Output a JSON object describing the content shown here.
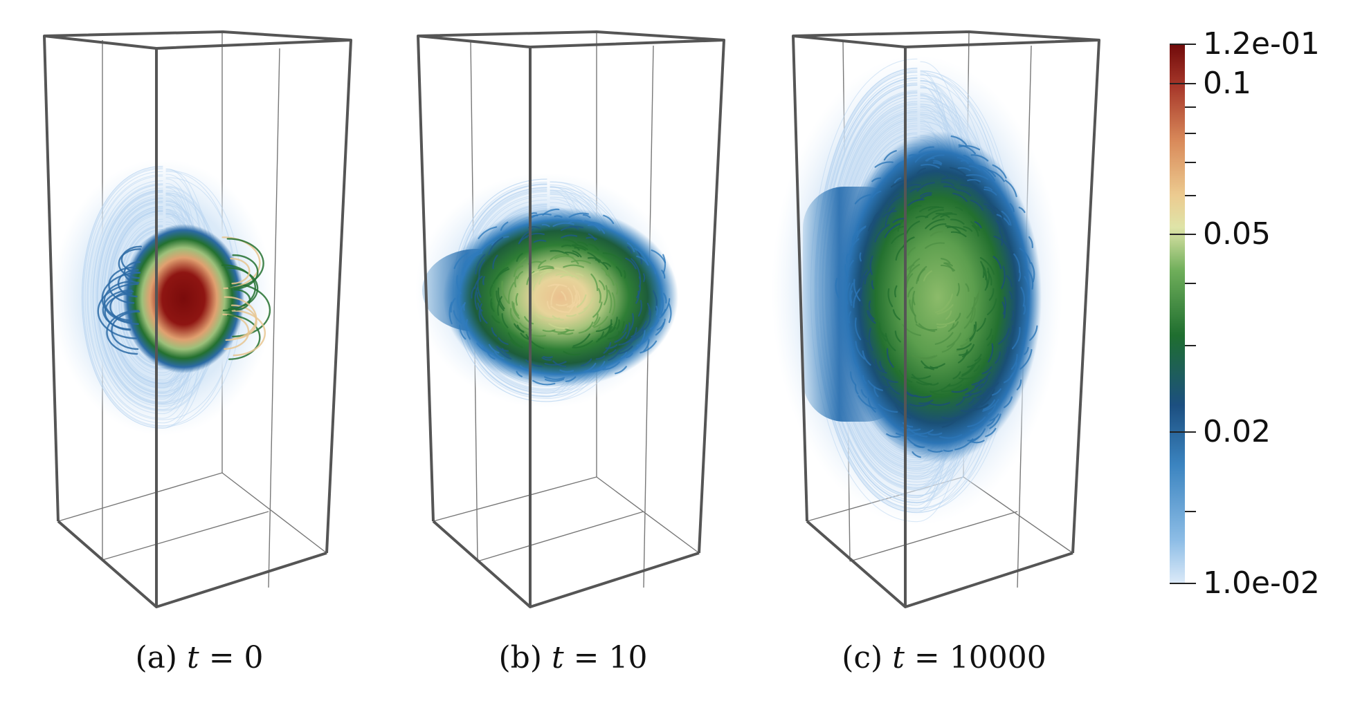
{
  "panels": [
    {
      "label": "(a)",
      "var": "t",
      "eq": " = ",
      "value": "0"
    },
    {
      "label": "(b)",
      "var": "t",
      "eq": " = ",
      "value": "10"
    },
    {
      "label": "(c)",
      "var": "t",
      "eq": " = ",
      "value": "10000"
    }
  ],
  "colorbar": {
    "min": 0.01,
    "max": 0.12,
    "tick_labels": [
      "1.2e-01",
      "0.1",
      "0.05",
      "0.02",
      "1.0e-02"
    ],
    "colors": [
      "#7b0d0d",
      "#c25b3e",
      "#eac38e",
      "#cfd99b",
      "#7fb060",
      "#2a7a35",
      "#1f5e8f",
      "#3e8bc4",
      "#d7e8f7"
    ]
  }
}
